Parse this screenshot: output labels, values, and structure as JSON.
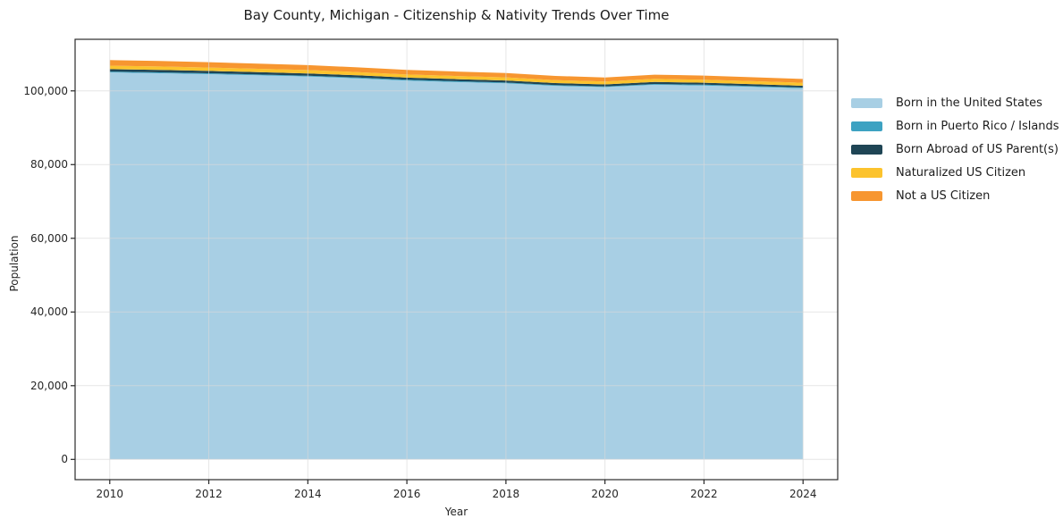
{
  "chart_data": {
    "type": "area",
    "stacked": true,
    "title": "Bay County, Michigan - Citizenship & Nativity Trends Over Time",
    "xlabel": "Year",
    "ylabel": "Population",
    "x": [
      2010,
      2011,
      2012,
      2013,
      2014,
      2015,
      2016,
      2017,
      2018,
      2019,
      2020,
      2021,
      2022,
      2023,
      2024
    ],
    "series": [
      {
        "name": "Born in the United States",
        "color": "#a8cfe4",
        "values": [
          105000,
          104790,
          104550,
          104220,
          103910,
          103400,
          102800,
          102400,
          102070,
          101380,
          101030,
          101670,
          101480,
          101110,
          100710
        ]
      },
      {
        "name": "Born in Puerto Rico / Islands",
        "color": "#3da2c2",
        "values": [
          250,
          250,
          240,
          240,
          230,
          230,
          220,
          220,
          210,
          210,
          200,
          210,
          200,
          200,
          190
        ]
      },
      {
        "name": "Born Abroad of US Parent(s)",
        "color": "#1f4555",
        "values": [
          650,
          640,
          630,
          620,
          610,
          590,
          570,
          560,
          550,
          530,
          520,
          540,
          530,
          510,
          500
        ]
      },
      {
        "name": "Naturalized US Citizen",
        "color": "#fcc32d",
        "values": [
          950,
          940,
          930,
          920,
          900,
          880,
          860,
          850,
          840,
          810,
          800,
          830,
          820,
          800,
          790
        ]
      },
      {
        "name": "Not a US Citizen",
        "color": "#f79630",
        "values": [
          1500,
          1480,
          1450,
          1400,
          1350,
          1300,
          1250,
          1220,
          1180,
          1120,
          1100,
          1150,
          1120,
          1080,
          1050
        ]
      }
    ],
    "x_ticks": [
      2010,
      2012,
      2014,
      2016,
      2018,
      2020,
      2022,
      2024
    ],
    "x_tick_labels": [
      "2010",
      "2012",
      "2014",
      "2016",
      "2018",
      "2020",
      "2022",
      "2024"
    ],
    "y_ticks": [
      0,
      20000,
      40000,
      60000,
      80000,
      100000
    ],
    "y_tick_labels": [
      "0",
      "20,000",
      "40,000",
      "60,000",
      "80,000",
      "100,000"
    ],
    "xlim": [
      2009.3,
      2024.7
    ],
    "ylim": [
      -5500,
      114000
    ],
    "grid": true,
    "legend_position": "right",
    "frame_color": "#2b2b2b",
    "grid_color": "#d8d8d8",
    "tick_color": "#262626"
  }
}
